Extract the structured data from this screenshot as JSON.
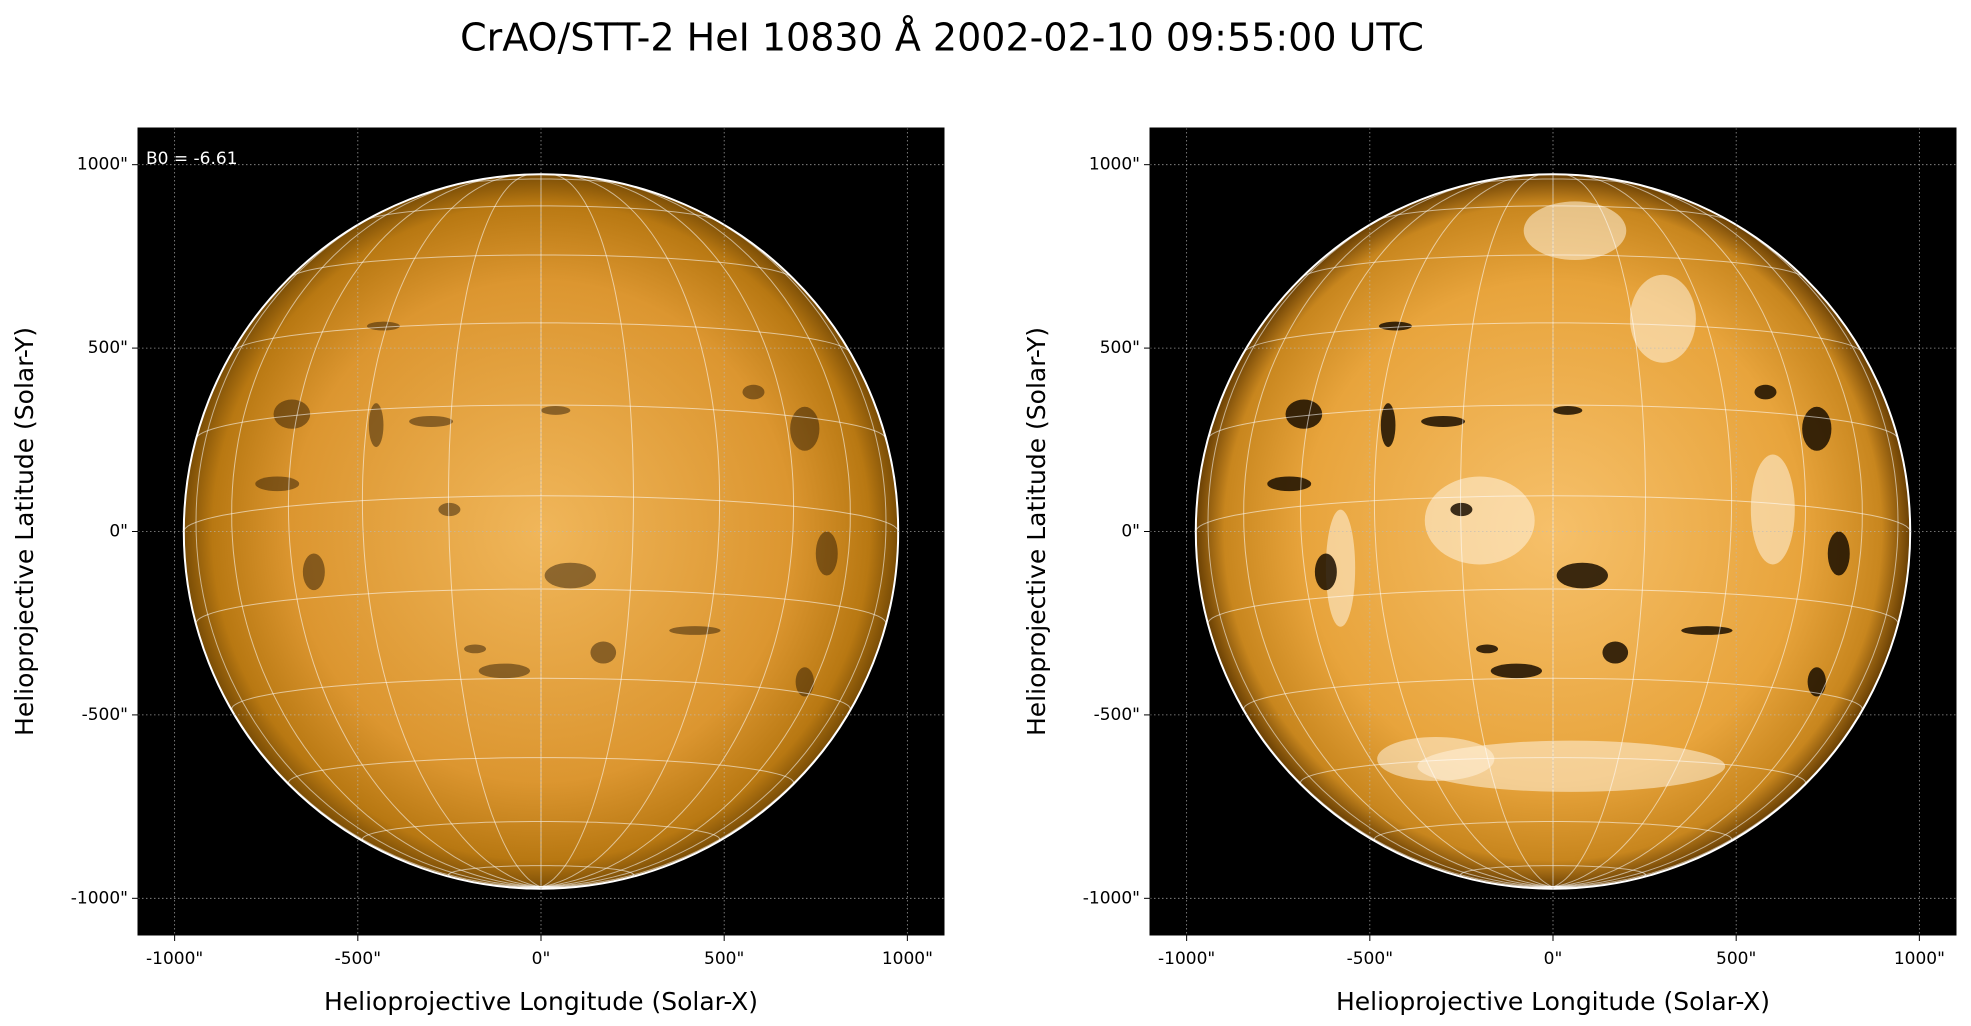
{
  "title": "CrAO/STT-2 HeI 10830 Å 2002-02-10 09:55:00 UTC",
  "chart_data": [
    {
      "type": "image",
      "annotation": "B0 = -6.61",
      "xlabel": "Helioprojective Longitude (Solar-X)",
      "ylabel": "Helioprojective Latitude (Solar-Y)",
      "xlim": [
        -1100,
        1100
      ],
      "ylim": [
        -1100,
        1100
      ],
      "xticks": [
        {
          "value": -1000,
          "label": "-1000\""
        },
        {
          "value": -500,
          "label": "-500\""
        },
        {
          "value": 0,
          "label": "0\""
        },
        {
          "value": 500,
          "label": "500\""
        },
        {
          "value": 1000,
          "label": "1000\""
        }
      ],
      "yticks": [
        {
          "value": -1000,
          "label": "-1000\""
        },
        {
          "value": -500,
          "label": "-500\""
        },
        {
          "value": 0,
          "label": "0\""
        },
        {
          "value": 500,
          "label": "500\""
        },
        {
          "value": 1000,
          "label": "1000\""
        }
      ],
      "grid": true
    },
    {
      "type": "image",
      "xlabel": "Helioprojective Longitude (Solar-X)",
      "ylabel": "Helioprojective Latitude (Solar-Y)",
      "xlim": [
        -1100,
        1100
      ],
      "ylim": [
        -1100,
        1100
      ],
      "xticks": [
        {
          "value": -1000,
          "label": "-1000\""
        },
        {
          "value": -500,
          "label": "-500\""
        },
        {
          "value": 0,
          "label": "0\""
        },
        {
          "value": 500,
          "label": "500\""
        },
        {
          "value": 1000,
          "label": "1000\""
        }
      ],
      "yticks": [
        {
          "value": -1000,
          "label": "-1000\""
        },
        {
          "value": -500,
          "label": "-500\""
        },
        {
          "value": 0,
          "label": "0\""
        },
        {
          "value": 500,
          "label": "500\""
        },
        {
          "value": 1000,
          "label": "1000\""
        }
      ],
      "grid": true
    }
  ]
}
